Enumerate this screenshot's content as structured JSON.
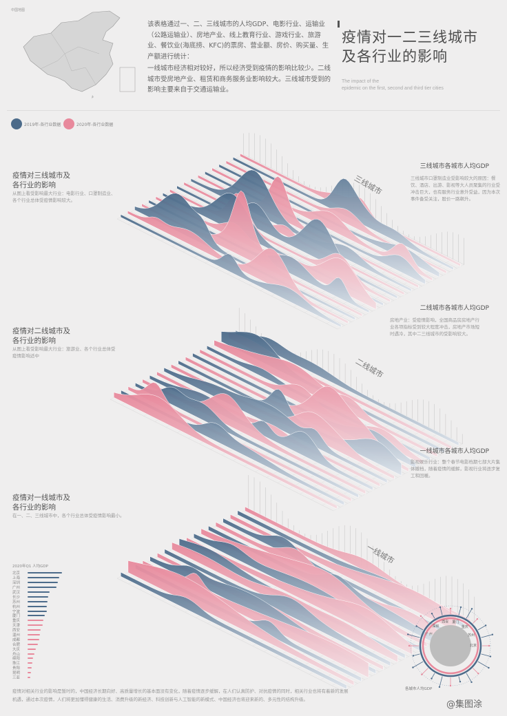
{
  "intro": {
    "p1": "该表格通过一、二、三线城市的人均GDP、电影行业、运输业（公路运输业）、房地产业、线上教育行业、游戏行业、旅游业、餐饮业(海底捞、KFC)的票房、营业额、房价、购买量、生产额进行统计：",
    "p2": "一线城市经济相对较好，所以经济受到疫情的影响比较少。二线城市受房地产业、租赁和商务服务业影响较大。三线城市受到的影响主要来自于交通运输业。"
  },
  "title": {
    "line1": "疫情对一二三线城市",
    "line2": "及各行业的影响",
    "subtitle_line1": "The impact of the",
    "subtitle_line2": "epidemic on the first, second and third tier cities"
  },
  "legend": {
    "item1": "2019年-各行业数据",
    "item2": "2020年-各行业数据"
  },
  "colors": {
    "blue": "#4c6b8a",
    "pink": "#e8899c",
    "line": "#999999"
  },
  "sections": {
    "third": {
      "left_title_1": "疫情对三线城市及",
      "left_title_2": "各行业的影响",
      "left_body": "从图上看受影响最大行业：电影行业、口罩制造业、各个行业总体受疫情影响较大。",
      "right_title": "三线城市各城市人均GDP",
      "right_body": "三线城市口罩制造业受影响较大的原因：餐饮、酒店、出游、影视等大人员聚集的行业受冲击巨大，也有服务行业意外受益，因为本次事件备受关注，股价一路飙升。",
      "label": "三线城市"
    },
    "second": {
      "left_title_1": "疫情对二线城市及",
      "left_title_2": "各行业的影响",
      "left_body": "从图上看受影响最大行业：旅游业、各个行业总体受疫情影响适中",
      "right_title": "二线城市各城市人均GDP",
      "right_body": "房地产业：受疫情影响，全国商品房房地产行业各项指标受到较大程度冲击，房地产市场短时遇冷，其中二三线城市的受影响较大。",
      "label": "二线城市"
    },
    "first": {
      "left_title_1": "疫情对一线城市及",
      "left_title_2": "各行业的影响",
      "left_body": "在一、二、三线城市中，各个行业总体受疫情影响最小。",
      "right_title": "一线城市各城市人均GDP",
      "right_body": "影视娱乐行业：整个春节电影档期七部大片集体撤档，随着疫情的缓解，影视行业将逐步复工和回暖。",
      "label": "一线城市"
    }
  },
  "rank": {
    "title": "2020年Q1 人均GDP",
    "cities": [
      "北京",
      "上海",
      "深圳",
      "广州",
      "武汉",
      "长沙",
      "苏州",
      "杭州",
      "宁波",
      "厦门",
      "重庆",
      "天津",
      "西安",
      "温州",
      "成都",
      "合肥",
      "大庆",
      "舟山",
      "绵阳",
      "珠江",
      "贵阳",
      "昆明",
      "三亚"
    ],
    "values": [
      100,
      92,
      88,
      84,
      64,
      60,
      58,
      56,
      55,
      50,
      45,
      44,
      38,
      36,
      34,
      30,
      24,
      20,
      16,
      14,
      12,
      10,
      8
    ]
  },
  "radial": {
    "labels": [
      "广州",
      "深圳",
      "西安",
      "厦门",
      "重庆",
      "苏州",
      "北京"
    ],
    "caption": "各城市人均GDP"
  },
  "footer": {
    "line1": "疫情对相关行业的影响是暂时的，中国经济长期向好、高质量增长的基本面没有变化，随着疫情逐步缓解，在人们认真防护、对抗疫情的同时，相关行业也将有着新的发展",
    "line2": "机遇，通过本次疫情，人们将更加懂得健康的生活、消费升级的新经济、科技创新与人工智能的新模式、中国经济也将迎来新的、多元性的结构升级。"
  },
  "watermark": "@集图涂"
}
